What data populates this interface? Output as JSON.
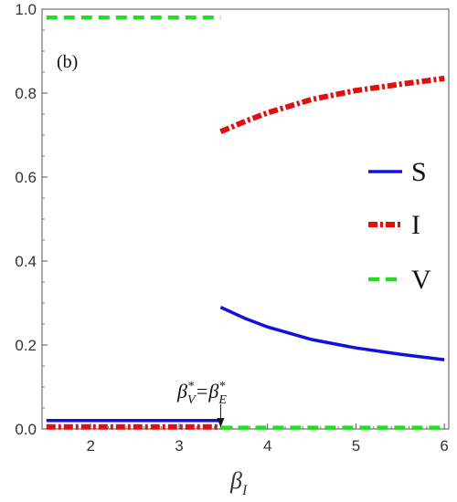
{
  "chart_data": {
    "type": "line",
    "panel_label": "(b)",
    "xlabel_base": "β",
    "xlabel_sub": "I",
    "ylabel": "",
    "xlim": [
      1.45,
      6.05
    ],
    "ylim": [
      0.0,
      1.0
    ],
    "x_ticks": [
      2,
      3,
      4,
      5,
      6
    ],
    "x_tick_labels": [
      "2",
      "3",
      "4",
      "5",
      "6"
    ],
    "y_ticks": [
      0.0,
      0.2,
      0.4,
      0.6,
      0.8,
      1.0
    ],
    "y_tick_labels": [
      "0.0",
      "0.2",
      "0.4",
      "0.6",
      "0.8",
      "1.0"
    ],
    "grid": false,
    "legend_position": "right",
    "annotation": {
      "text_left": "β",
      "sup_left": "*",
      "sub_left": "V",
      "equals": "=",
      "text_right": "β",
      "sup_right": "*",
      "sub_right": "E",
      "x": 3.47
    },
    "series": [
      {
        "name": "S",
        "color": "#1010e0",
        "style": "solid",
        "segments": [
          {
            "x": [
              1.5,
              3.47
            ],
            "y": [
              0.02,
              0.02
            ]
          },
          {
            "x": [
              3.47,
              3.75,
              4.0,
              4.5,
              5.0,
              5.5,
              6.0
            ],
            "y": [
              0.29,
              0.263,
              0.243,
              0.213,
              0.193,
              0.178,
              0.165
            ]
          }
        ]
      },
      {
        "name": "I",
        "color": "#e01010",
        "style": "dashdot",
        "segments": [
          {
            "x": [
              1.5,
              3.47
            ],
            "y": [
              0.005,
              0.005
            ]
          },
          {
            "x": [
              3.47,
              3.75,
              4.0,
              4.5,
              5.0,
              5.5,
              6.0
            ],
            "y": [
              0.708,
              0.733,
              0.753,
              0.785,
              0.806,
              0.821,
              0.835
            ]
          }
        ]
      },
      {
        "name": "V",
        "color": "#22dd22",
        "style": "dashed",
        "segments": [
          {
            "x": [
              1.5,
              3.47
            ],
            "y": [
              0.98,
              0.98
            ]
          },
          {
            "x": [
              3.47,
              6.0
            ],
            "y": [
              0.003,
              0.003
            ]
          }
        ]
      }
    ]
  }
}
